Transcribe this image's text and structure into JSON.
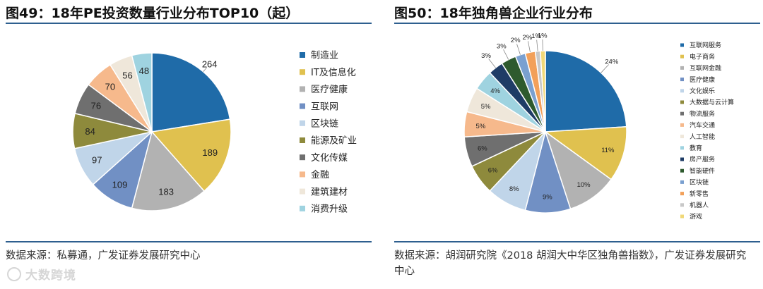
{
  "left": {
    "title": "图49：18年PE投资数量行业分布TOP10（起）",
    "source": "数据来源：私募通，广发证券发展研究中心"
  },
  "right": {
    "title": "图50：18年独角兽企业行业分布",
    "source": "数据来源：胡润研究院《2018 胡润大中华区独角兽指数》，广发证券发展研究中心"
  },
  "watermark": "大数跨境",
  "chart_data": [
    {
      "type": "pie",
      "title": "图49：18年PE投资数量行业分布TOP10（起）",
      "categories": [
        "制造业",
        "IT及信息化",
        "医疗健康",
        "互联网",
        "区块链",
        "能源及矿业",
        "文化传媒",
        "金融",
        "建筑建材",
        "消费升级"
      ],
      "values": [
        264,
        189,
        183,
        109,
        97,
        84,
        76,
        70,
        56,
        48
      ],
      "labels": [
        "264",
        "189",
        "183",
        "109",
        "97",
        "84",
        "76",
        "70",
        "56",
        "48"
      ],
      "colors": [
        "#1f6ba8",
        "#e0c14f",
        "#b2b2b2",
        "#7190c4",
        "#c0d5e9",
        "#8e8a3c",
        "#6f6f6f",
        "#f6b98c",
        "#efe7da",
        "#9fd3e0"
      ],
      "legend_position": "right"
    },
    {
      "type": "pie",
      "title": "图50：18年独角兽企业行业分布",
      "categories": [
        "互联网服务",
        "电子商务",
        "互联网金融",
        "医疗健康",
        "文化娱乐",
        "大数据与云计算",
        "物流服务",
        "汽车交通",
        "人工智能",
        "教育",
        "房产服务",
        "智能硬件",
        "区块链",
        "新零售",
        "机器人",
        "游戏"
      ],
      "values": [
        24,
        11,
        10,
        9,
        8,
        6,
        6,
        5,
        5,
        4,
        3,
        3,
        2,
        2,
        1,
        1
      ],
      "labels": [
        "24%",
        "11%",
        "10%",
        "9%",
        "8%",
        "6%",
        "6%",
        "5%",
        "5%",
        "4%",
        "3%",
        "3%",
        "2%",
        "2%",
        "1%",
        "1%"
      ],
      "colors": [
        "#1f6ba8",
        "#e0c14f",
        "#b2b2b2",
        "#7190c4",
        "#c0d5e9",
        "#8e8a3c",
        "#6f6f6f",
        "#f6b98c",
        "#efe7da",
        "#9fd3e0",
        "#1f3c66",
        "#2e5a2e",
        "#7aa0d0",
        "#f2a05a",
        "#c8c8c8",
        "#f0d878"
      ],
      "legend_position": "right"
    }
  ]
}
